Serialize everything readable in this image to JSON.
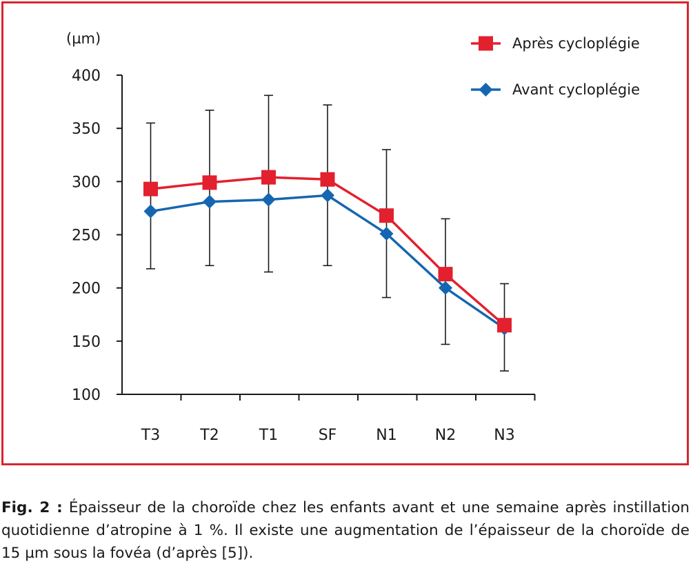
{
  "chart_data": {
    "type": "line",
    "unit_label": "(µm)",
    "categories": [
      "T3",
      "T2",
      "T1",
      "SF",
      "N1",
      "N2",
      "N3"
    ],
    "ylim": [
      100,
      400
    ],
    "yticks": [
      100,
      150,
      200,
      250,
      300,
      350,
      400
    ],
    "ytick_labels": [
      "100",
      "150",
      "200",
      "250",
      "300",
      "350",
      "400"
    ],
    "legend_position": "top-right",
    "grid": false,
    "series": [
      {
        "name": "Après cycloplégie",
        "color": "#e3202e",
        "marker": "square",
        "values": [
          293,
          299,
          304,
          302,
          268,
          213,
          165
        ]
      },
      {
        "name": "Avant cycloplégie",
        "color": "#1566b0",
        "marker": "diamond",
        "values": [
          272,
          281,
          283,
          287,
          251,
          200,
          162
        ],
        "error_low": [
          218,
          221,
          215,
          221,
          191,
          147,
          122
        ],
        "error_high": [
          355,
          367,
          381,
          372,
          330,
          265,
          204
        ]
      }
    ]
  },
  "caption": {
    "label": "Fig. 2 :",
    "text": " Épaisseur de la choroïde chez les enfants avant et une semaine après instillation quotidienne d’atropine à 1 %. Il existe une augmentation de l’épaisseur de la choroïde de 15 µm sous la fovéa (d’après [5])."
  },
  "colors": {
    "frame": "#d6262f",
    "axis": "#1a1a1a"
  }
}
